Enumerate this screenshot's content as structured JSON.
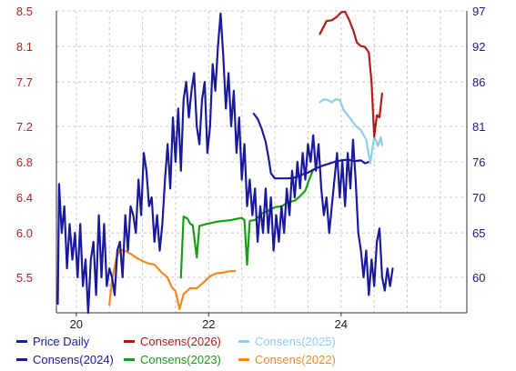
{
  "chart_data": {
    "type": "line",
    "title": "",
    "xlabel": "",
    "ylabel_left": "",
    "ylabel_right": "",
    "grid": true,
    "x_ticks": [
      "20",
      "22",
      "24"
    ],
    "left_axis": {
      "ticks": [
        "8.5",
        "8.1",
        "7.7",
        "7.2",
        "6.8",
        "6.4",
        "6.0",
        "5.5"
      ],
      "range": [
        5.1,
        8.5
      ]
    },
    "right_axis": {
      "ticks": [
        "97",
        "92",
        "86",
        "81",
        "76",
        "70",
        "65",
        "60"
      ],
      "range": [
        55,
        97
      ]
    },
    "x_range": [
      2019.7,
      2025.9
    ],
    "series": [
      {
        "name": "Price Daily",
        "axis": "left",
        "color": "#1a1a9c",
        "points": [
          [
            2019.72,
            5.2
          ],
          [
            2019.74,
            6.55
          ],
          [
            2019.78,
            6.0
          ],
          [
            2019.82,
            6.3
          ],
          [
            2019.86,
            5.6
          ],
          [
            2019.9,
            6.1
          ],
          [
            2019.94,
            5.7
          ],
          [
            2019.98,
            6.0
          ],
          [
            2020.02,
            5.5
          ],
          [
            2020.06,
            6.1
          ],
          [
            2020.1,
            5.4
          ],
          [
            2020.14,
            5.7
          ],
          [
            2020.18,
            5.1
          ],
          [
            2020.22,
            5.7
          ],
          [
            2020.26,
            5.9
          ],
          [
            2020.3,
            5.3
          ],
          [
            2020.34,
            6.2
          ],
          [
            2020.38,
            5.5
          ],
          [
            2020.42,
            6.1
          ],
          [
            2020.46,
            5.4
          ],
          [
            2020.5,
            5.6
          ],
          [
            2020.54,
            5.5
          ],
          [
            2020.58,
            5.3
          ],
          [
            2020.62,
            5.8
          ],
          [
            2020.66,
            5.9
          ],
          [
            2020.7,
            5.5
          ],
          [
            2020.74,
            6.2
          ],
          [
            2020.78,
            5.8
          ],
          [
            2020.82,
            6.3
          ],
          [
            2020.86,
            6.2
          ],
          [
            2020.9,
            6.0
          ],
          [
            2020.94,
            6.6
          ],
          [
            2020.98,
            6.2
          ],
          [
            2021.02,
            6.9
          ],
          [
            2021.06,
            6.7
          ],
          [
            2021.1,
            6.3
          ],
          [
            2021.14,
            6.4
          ],
          [
            2021.18,
            5.9
          ],
          [
            2021.22,
            6.2
          ],
          [
            2021.26,
            5.8
          ],
          [
            2021.3,
            6.1
          ],
          [
            2021.34,
            6.6
          ],
          [
            2021.38,
            7.0
          ],
          [
            2021.42,
            6.5
          ],
          [
            2021.46,
            7.3
          ],
          [
            2021.5,
            6.8
          ],
          [
            2021.54,
            7.4
          ],
          [
            2021.58,
            6.7
          ],
          [
            2021.62,
            7.5
          ],
          [
            2021.66,
            7.7
          ],
          [
            2021.7,
            7.3
          ],
          [
            2021.74,
            7.6
          ],
          [
            2021.78,
            7.8
          ],
          [
            2021.82,
            7.2
          ],
          [
            2021.86,
            7.0
          ],
          [
            2021.9,
            7.5
          ],
          [
            2021.94,
            7.7
          ],
          [
            2021.98,
            6.9
          ],
          [
            2022.02,
            7.2
          ],
          [
            2022.06,
            7.9
          ],
          [
            2022.1,
            7.6
          ],
          [
            2022.14,
            8.1
          ],
          [
            2022.18,
            8.47
          ],
          [
            2022.22,
            8.0
          ],
          [
            2022.26,
            7.4
          ],
          [
            2022.3,
            7.8
          ],
          [
            2022.34,
            7.2
          ],
          [
            2022.38,
            7.6
          ],
          [
            2022.42,
            6.9
          ],
          [
            2022.46,
            7.3
          ],
          [
            2022.5,
            6.6
          ],
          [
            2022.54,
            7.0
          ],
          [
            2022.58,
            6.3
          ],
          [
            2022.62,
            6.6
          ],
          [
            2022.66,
            6.2
          ],
          [
            2022.7,
            6.5
          ],
          [
            2022.74,
            5.9
          ],
          [
            2022.78,
            6.3
          ],
          [
            2022.82,
            6.0
          ],
          [
            2022.86,
            6.5
          ],
          [
            2022.9,
            6.0
          ],
          [
            2022.94,
            6.4
          ],
          [
            2022.98,
            5.8
          ],
          [
            2023.02,
            6.2
          ],
          [
            2023.06,
            5.9
          ],
          [
            2023.1,
            6.3
          ],
          [
            2023.14,
            6.0
          ],
          [
            2023.18,
            6.5
          ],
          [
            2023.22,
            6.2
          ],
          [
            2023.26,
            6.7
          ],
          [
            2023.3,
            6.4
          ],
          [
            2023.34,
            6.8
          ],
          [
            2023.38,
            6.5
          ],
          [
            2023.42,
            6.9
          ],
          [
            2023.46,
            6.6
          ],
          [
            2023.5,
            7.0
          ],
          [
            2023.54,
            6.8
          ],
          [
            2023.58,
            7.1
          ],
          [
            2023.62,
            6.7
          ],
          [
            2023.66,
            7.0
          ],
          [
            2023.7,
            6.5
          ],
          [
            2023.74,
            6.2
          ],
          [
            2023.78,
            6.4
          ],
          [
            2023.82,
            6.0
          ],
          [
            2023.86,
            6.3
          ],
          [
            2023.9,
            6.6
          ],
          [
            2023.94,
            6.9
          ],
          [
            2023.98,
            6.4
          ],
          [
            2024.02,
            6.8
          ],
          [
            2024.06,
            6.3
          ],
          [
            2024.1,
            6.9
          ],
          [
            2024.14,
            6.5
          ],
          [
            2024.18,
            7.05
          ],
          [
            2024.22,
            6.6
          ],
          [
            2024.26,
            6.0
          ],
          [
            2024.3,
            5.8
          ],
          [
            2024.34,
            5.5
          ],
          [
            2024.38,
            5.8
          ],
          [
            2024.42,
            5.3
          ],
          [
            2024.46,
            5.7
          ],
          [
            2024.5,
            5.4
          ],
          [
            2024.54,
            5.9
          ],
          [
            2024.58,
            6.05
          ],
          [
            2024.62,
            5.5
          ],
          [
            2024.66,
            5.35
          ],
          [
            2024.7,
            5.6
          ],
          [
            2024.74,
            5.4
          ],
          [
            2024.78,
            5.6
          ]
        ]
      },
      {
        "name": "Consens(2026)",
        "axis": "right",
        "color": "#b01c1c",
        "points": [
          [
            2023.68,
            93.8
          ],
          [
            2023.72,
            94.5
          ],
          [
            2023.78,
            95.6
          ],
          [
            2023.86,
            95.7
          ],
          [
            2023.94,
            96.2
          ],
          [
            2024.0,
            96.8
          ],
          [
            2024.06,
            96.9
          ],
          [
            2024.12,
            95.8
          ],
          [
            2024.18,
            94.4
          ],
          [
            2024.24,
            92.6
          ],
          [
            2024.3,
            92.1
          ],
          [
            2024.36,
            92.0
          ],
          [
            2024.42,
            91.2
          ],
          [
            2024.46,
            87.0
          ],
          [
            2024.5,
            79.5
          ],
          [
            2024.54,
            82.5
          ],
          [
            2024.58,
            82.2
          ],
          [
            2024.62,
            85.5
          ]
        ]
      },
      {
        "name": "Consens(2025)",
        "axis": "right",
        "color": "#8ccfe6",
        "points": [
          [
            2023.68,
            84.3
          ],
          [
            2023.74,
            84.7
          ],
          [
            2023.8,
            84.6
          ],
          [
            2023.86,
            84.3
          ],
          [
            2023.92,
            84.7
          ],
          [
            2023.98,
            84.6
          ],
          [
            2024.04,
            83.2
          ],
          [
            2024.1,
            82.5
          ],
          [
            2024.16,
            81.8
          ],
          [
            2024.22,
            81.0
          ],
          [
            2024.3,
            80.4
          ],
          [
            2024.38,
            79.1
          ],
          [
            2024.44,
            75.8
          ],
          [
            2024.5,
            79.5
          ],
          [
            2024.56,
            78.2
          ],
          [
            2024.6,
            79.4
          ],
          [
            2024.62,
            78.3
          ]
        ]
      },
      {
        "name": "Consens(2024)",
        "axis": "right",
        "color": "#1a1a9c",
        "points": [
          [
            2022.68,
            82.7
          ],
          [
            2022.74,
            82.0
          ],
          [
            2022.8,
            80.6
          ],
          [
            2022.86,
            78.8
          ],
          [
            2022.9,
            76.8
          ],
          [
            2022.94,
            74.4
          ],
          [
            2023.0,
            73.7
          ],
          [
            2023.1,
            73.7
          ],
          [
            2023.2,
            73.7
          ],
          [
            2023.3,
            73.8
          ],
          [
            2023.4,
            74.2
          ],
          [
            2023.5,
            74.5
          ],
          [
            2023.6,
            75.0
          ],
          [
            2023.7,
            75.4
          ],
          [
            2023.8,
            75.7
          ],
          [
            2023.9,
            76.0
          ],
          [
            2024.0,
            76.2
          ],
          [
            2024.1,
            76.3
          ],
          [
            2024.2,
            76.1
          ],
          [
            2024.3,
            76.2
          ],
          [
            2024.36,
            75.8
          ],
          [
            2024.42,
            76.0
          ]
        ]
      },
      {
        "name": "Consens(2023)",
        "axis": "right",
        "color": "#1a9c1a",
        "points": [
          [
            2021.58,
            59.9
          ],
          [
            2021.62,
            68.4
          ],
          [
            2021.68,
            68.1
          ],
          [
            2021.72,
            67.4
          ],
          [
            2021.76,
            67.2
          ],
          [
            2021.82,
            62.7
          ],
          [
            2021.86,
            67.1
          ],
          [
            2021.94,
            67.3
          ],
          [
            2022.04,
            67.5
          ],
          [
            2022.14,
            67.7
          ],
          [
            2022.24,
            67.8
          ],
          [
            2022.34,
            67.9
          ],
          [
            2022.44,
            68.1
          ],
          [
            2022.5,
            68.2
          ],
          [
            2022.54,
            67.9
          ],
          [
            2022.58,
            61.7
          ],
          [
            2022.62,
            67.8
          ],
          [
            2022.7,
            67.9
          ],
          [
            2022.8,
            68.8
          ],
          [
            2022.9,
            69.2
          ],
          [
            2023.0,
            69.7
          ],
          [
            2023.1,
            69.8
          ],
          [
            2023.2,
            70.4
          ],
          [
            2023.3,
            70.6
          ],
          [
            2023.38,
            71.2
          ],
          [
            2023.46,
            72.0
          ],
          [
            2023.52,
            73.6
          ],
          [
            2023.58,
            74.9
          ]
        ]
      },
      {
        "name": "Consens(2022)",
        "axis": "right",
        "color": "#ef8a1e",
        "points": [
          [
            2020.5,
            56.1
          ],
          [
            2020.54,
            59.6
          ],
          [
            2020.6,
            62.4
          ],
          [
            2020.66,
            63.8
          ],
          [
            2020.74,
            63.6
          ],
          [
            2020.82,
            63.2
          ],
          [
            2020.9,
            62.7
          ],
          [
            2020.98,
            62.3
          ],
          [
            2021.08,
            61.9
          ],
          [
            2021.18,
            61.7
          ],
          [
            2021.28,
            60.7
          ],
          [
            2021.38,
            59.9
          ],
          [
            2021.44,
            58.6
          ],
          [
            2021.5,
            58.0
          ],
          [
            2021.56,
            55.5
          ],
          [
            2021.62,
            57.6
          ],
          [
            2021.72,
            58.4
          ],
          [
            2021.82,
            58.4
          ],
          [
            2021.92,
            59.2
          ],
          [
            2022.02,
            60.1
          ],
          [
            2022.12,
            60.5
          ],
          [
            2022.22,
            60.6
          ],
          [
            2022.32,
            60.8
          ],
          [
            2022.4,
            60.8
          ]
        ]
      }
    ],
    "legend": [
      "Price Daily",
      "Consens(2026)",
      "Consens(2025)",
      "Consens(2024)",
      "Consens(2023)",
      "Consens(2022)"
    ]
  }
}
